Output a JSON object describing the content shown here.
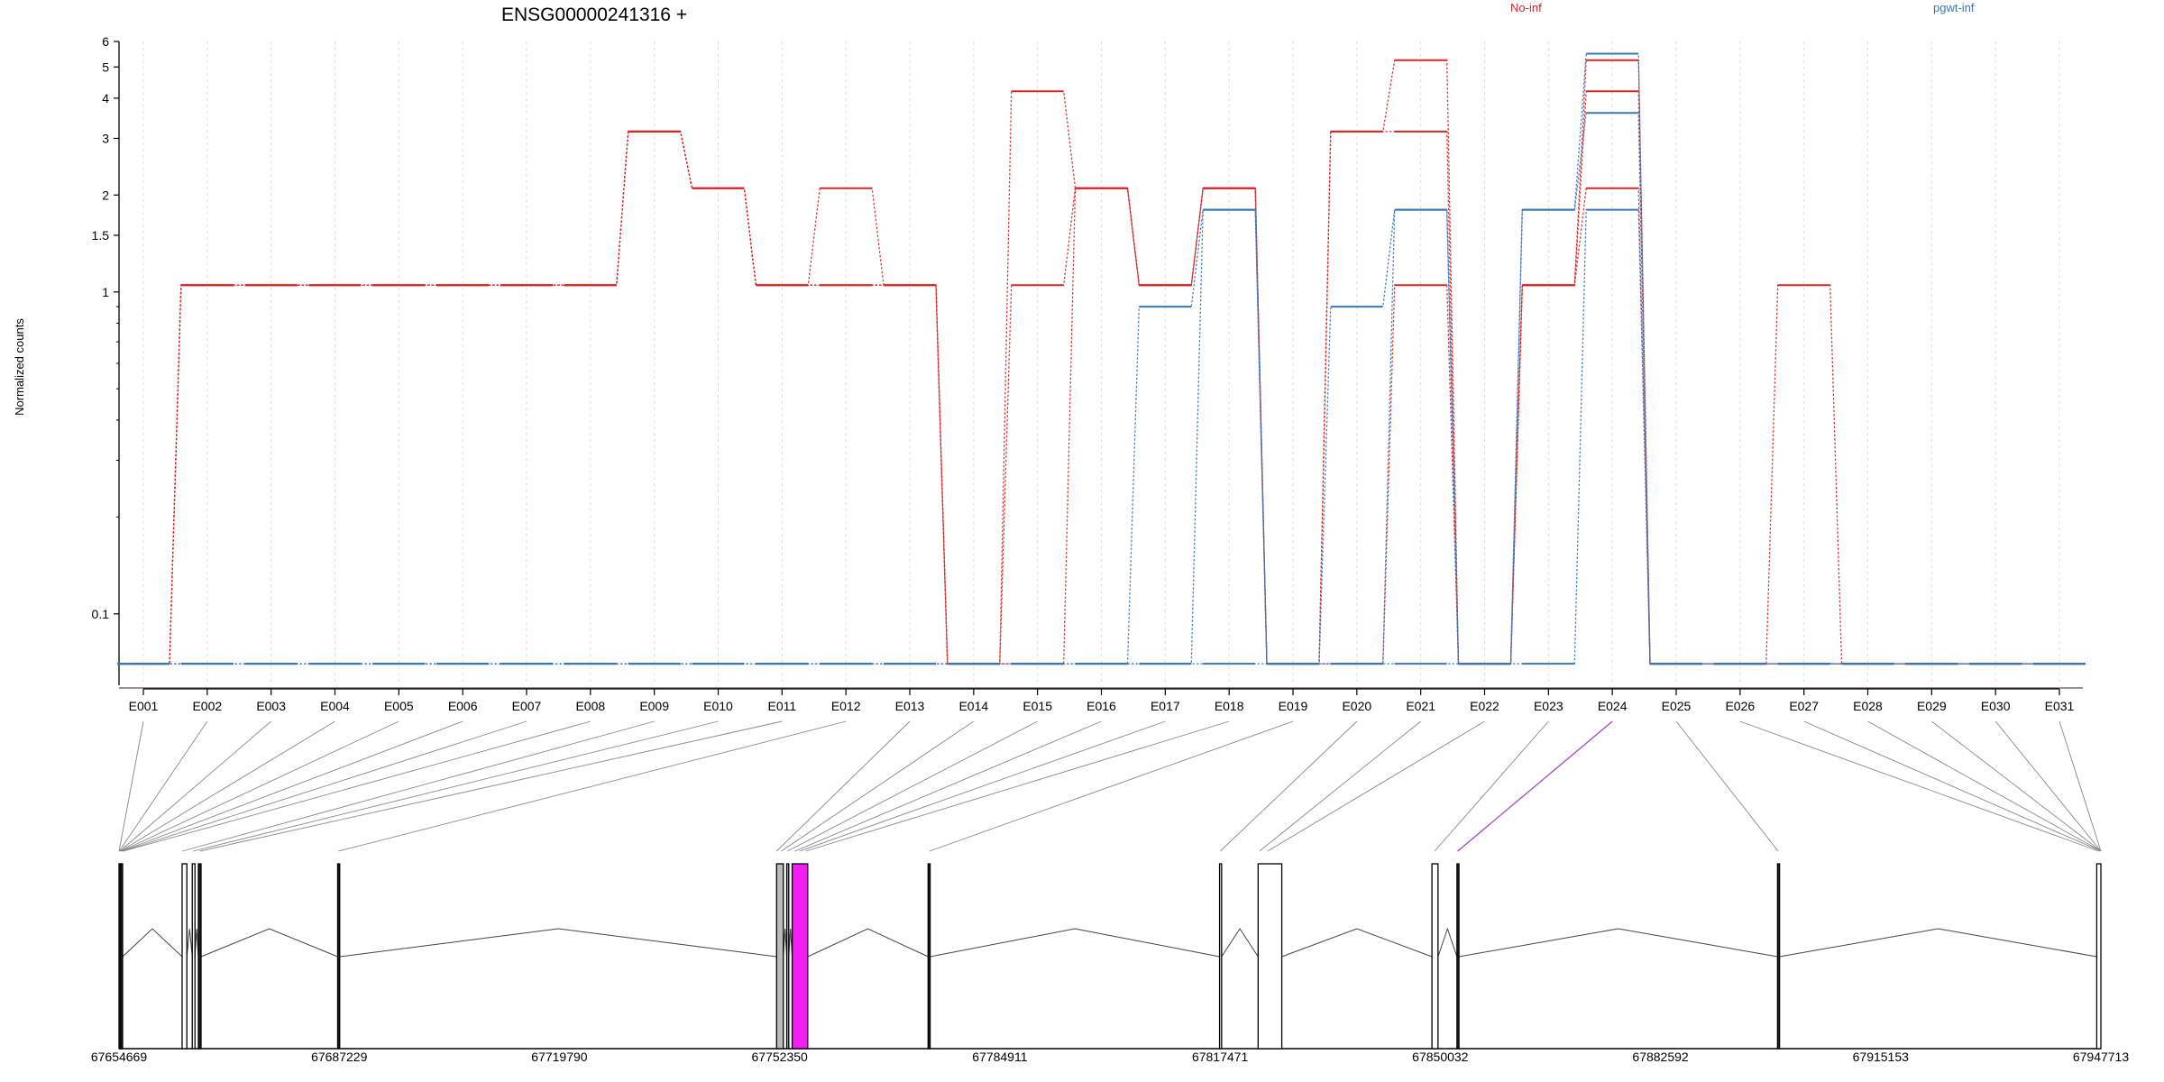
{
  "chart_data": {
    "type": "line",
    "title": "ENSG00000241316 +",
    "ylabel": "Normalized counts",
    "xlabel": "",
    "yscale": "log",
    "ylim": [
      0.06,
      6
    ],
    "yticks": [
      "6",
      "5",
      "4",
      "3",
      "2",
      "1.5",
      "1",
      "0.1"
    ],
    "ytick_values": [
      6,
      5,
      4,
      3,
      2,
      1.5,
      1,
      0.1
    ],
    "grid": "vertical dotted",
    "legend": [
      {
        "name": "No-inf",
        "color": "#d62728",
        "placement": "top-center-right"
      },
      {
        "name": "pgwt-inf",
        "color": "#3a78b5",
        "placement": "top-right"
      }
    ],
    "categories": [
      "E001",
      "E002",
      "E003",
      "E004",
      "E005",
      "E006",
      "E007",
      "E008",
      "E009",
      "E010",
      "E011",
      "E012",
      "E013",
      "E014",
      "E015",
      "E016",
      "E017",
      "E018",
      "E019",
      "E020",
      "E021",
      "E022",
      "E023",
      "E024",
      "E025",
      "E026",
      "E027",
      "E028",
      "E029",
      "E030",
      "E031"
    ],
    "highlighted_category": "E024",
    "series": [
      {
        "name": "No-inf",
        "color": "#d62728",
        "values": [
          0.07,
          1.05,
          1.05,
          1.05,
          1.05,
          1.05,
          1.05,
          1.05,
          3.15,
          2.1,
          1.05,
          2.1,
          1.05,
          0.07,
          4.2,
          2.1,
          1.05,
          2.1,
          0.07,
          3.15,
          5.25,
          0.07,
          1.05,
          5.25,
          0.07,
          0.07,
          1.05,
          0.07,
          0.07,
          0.07,
          0.07
        ]
      },
      {
        "name": "No-inf",
        "color": "#d62728",
        "values": [
          0.07,
          1.05,
          1.05,
          1.05,
          1.05,
          1.05,
          1.05,
          1.05,
          3.15,
          2.1,
          1.05,
          1.05,
          1.05,
          0.07,
          1.05,
          2.1,
          1.05,
          2.1,
          0.07,
          3.15,
          3.15,
          0.07,
          1.05,
          4.2,
          0.07,
          0.07,
          0.07,
          0.07,
          0.07,
          0.07,
          0.07
        ]
      },
      {
        "name": "No-inf",
        "color": "#d62728",
        "values": [
          0.07,
          1.05,
          1.05,
          1.05,
          1.05,
          1.05,
          1.05,
          1.05,
          3.15,
          2.1,
          1.05,
          1.05,
          1.05,
          0.07,
          0.07,
          2.1,
          1.05,
          2.1,
          0.07,
          0.07,
          1.05,
          0.07,
          1.05,
          2.1,
          0.07,
          0.07,
          0.07,
          0.07,
          0.07,
          0.07,
          0.07
        ]
      },
      {
        "name": "pgwt-inf",
        "color": "#3a78b5",
        "values": [
          0.07,
          0.07,
          0.07,
          0.07,
          0.07,
          0.07,
          0.07,
          0.07,
          0.07,
          0.07,
          0.07,
          0.07,
          0.07,
          0.07,
          0.07,
          0.07,
          0.9,
          1.8,
          0.07,
          0.9,
          1.8,
          0.07,
          1.8,
          5.5,
          0.07,
          0.07,
          0.07,
          0.07,
          0.07,
          0.07,
          0.07
        ]
      },
      {
        "name": "pgwt-inf",
        "color": "#3a78b5",
        "values": [
          0.07,
          0.07,
          0.07,
          0.07,
          0.07,
          0.07,
          0.07,
          0.07,
          0.07,
          0.07,
          0.07,
          0.07,
          0.07,
          0.07,
          0.07,
          0.07,
          0.07,
          1.8,
          0.07,
          0.07,
          1.8,
          0.07,
          1.8,
          3.6,
          0.07,
          0.07,
          0.07,
          0.07,
          0.07,
          0.07,
          0.07
        ]
      },
      {
        "name": "pgwt-inf",
        "color": "#3a78b5",
        "values": [
          0.07,
          0.07,
          0.07,
          0.07,
          0.07,
          0.07,
          0.07,
          0.07,
          0.07,
          0.07,
          0.07,
          0.07,
          0.07,
          0.07,
          0.07,
          0.07,
          0.07,
          0.07,
          0.07,
          0.07,
          0.07,
          0.07,
          0.07,
          1.8,
          0.07,
          0.07,
          0.07,
          0.07,
          0.07,
          0.07,
          0.07
        ]
      }
    ],
    "gene_model": {
      "start": 67654669,
      "end": 67947713,
      "coordinate_labels": [
        "67654669",
        "67687229",
        "67719790",
        "67752350",
        "67784911",
        "67817471",
        "67850032",
        "67882592",
        "67915153",
        "67947713"
      ],
      "exons": [
        {
          "start": 67654669,
          "end": 67654900,
          "fill": "#222222"
        },
        {
          "start": 67654900,
          "end": 67655200,
          "fill": "#222222"
        },
        {
          "start": 67664000,
          "end": 67664700,
          "fill": "#ffffff"
        },
        {
          "start": 67665500,
          "end": 67665900,
          "fill": "#ffffff"
        },
        {
          "start": 67666400,
          "end": 67666800,
          "fill": "#222222"
        },
        {
          "start": 67687000,
          "end": 67687300,
          "fill": "#222222"
        },
        {
          "start": 67751900,
          "end": 67752900,
          "fill": "#bbbbbb"
        },
        {
          "start": 67753400,
          "end": 67753700,
          "fill": "#bbbbbb"
        },
        {
          "start": 67754200,
          "end": 67756500,
          "fill": "#f01ef0"
        },
        {
          "start": 67774300,
          "end": 67774600,
          "fill": "#222222"
        },
        {
          "start": 67817400,
          "end": 67817700,
          "fill": "#ffffff"
        },
        {
          "start": 67823100,
          "end": 67826600,
          "fill": "#ffffff"
        },
        {
          "start": 67848800,
          "end": 67849700,
          "fill": "#ffffff"
        },
        {
          "start": 67852500,
          "end": 67852800,
          "fill": "#222222"
        },
        {
          "start": 67899900,
          "end": 67900200,
          "fill": "#222222"
        },
        {
          "start": 67947100,
          "end": 67947713,
          "fill": "#ffffff"
        }
      ],
      "exon_mapping": [
        67654669,
        67654700,
        67654800,
        67654900,
        67655000,
        67655100,
        67655200,
        67655300,
        67664000,
        67665600,
        67666600,
        67687100,
        67751900,
        67752600,
        67753500,
        67754600,
        67755300,
        67756200,
        67774500,
        67817500,
        67823300,
        67824500,
        67849200,
        67852600,
        67900000,
        67947400,
        67947713
      ]
    }
  }
}
